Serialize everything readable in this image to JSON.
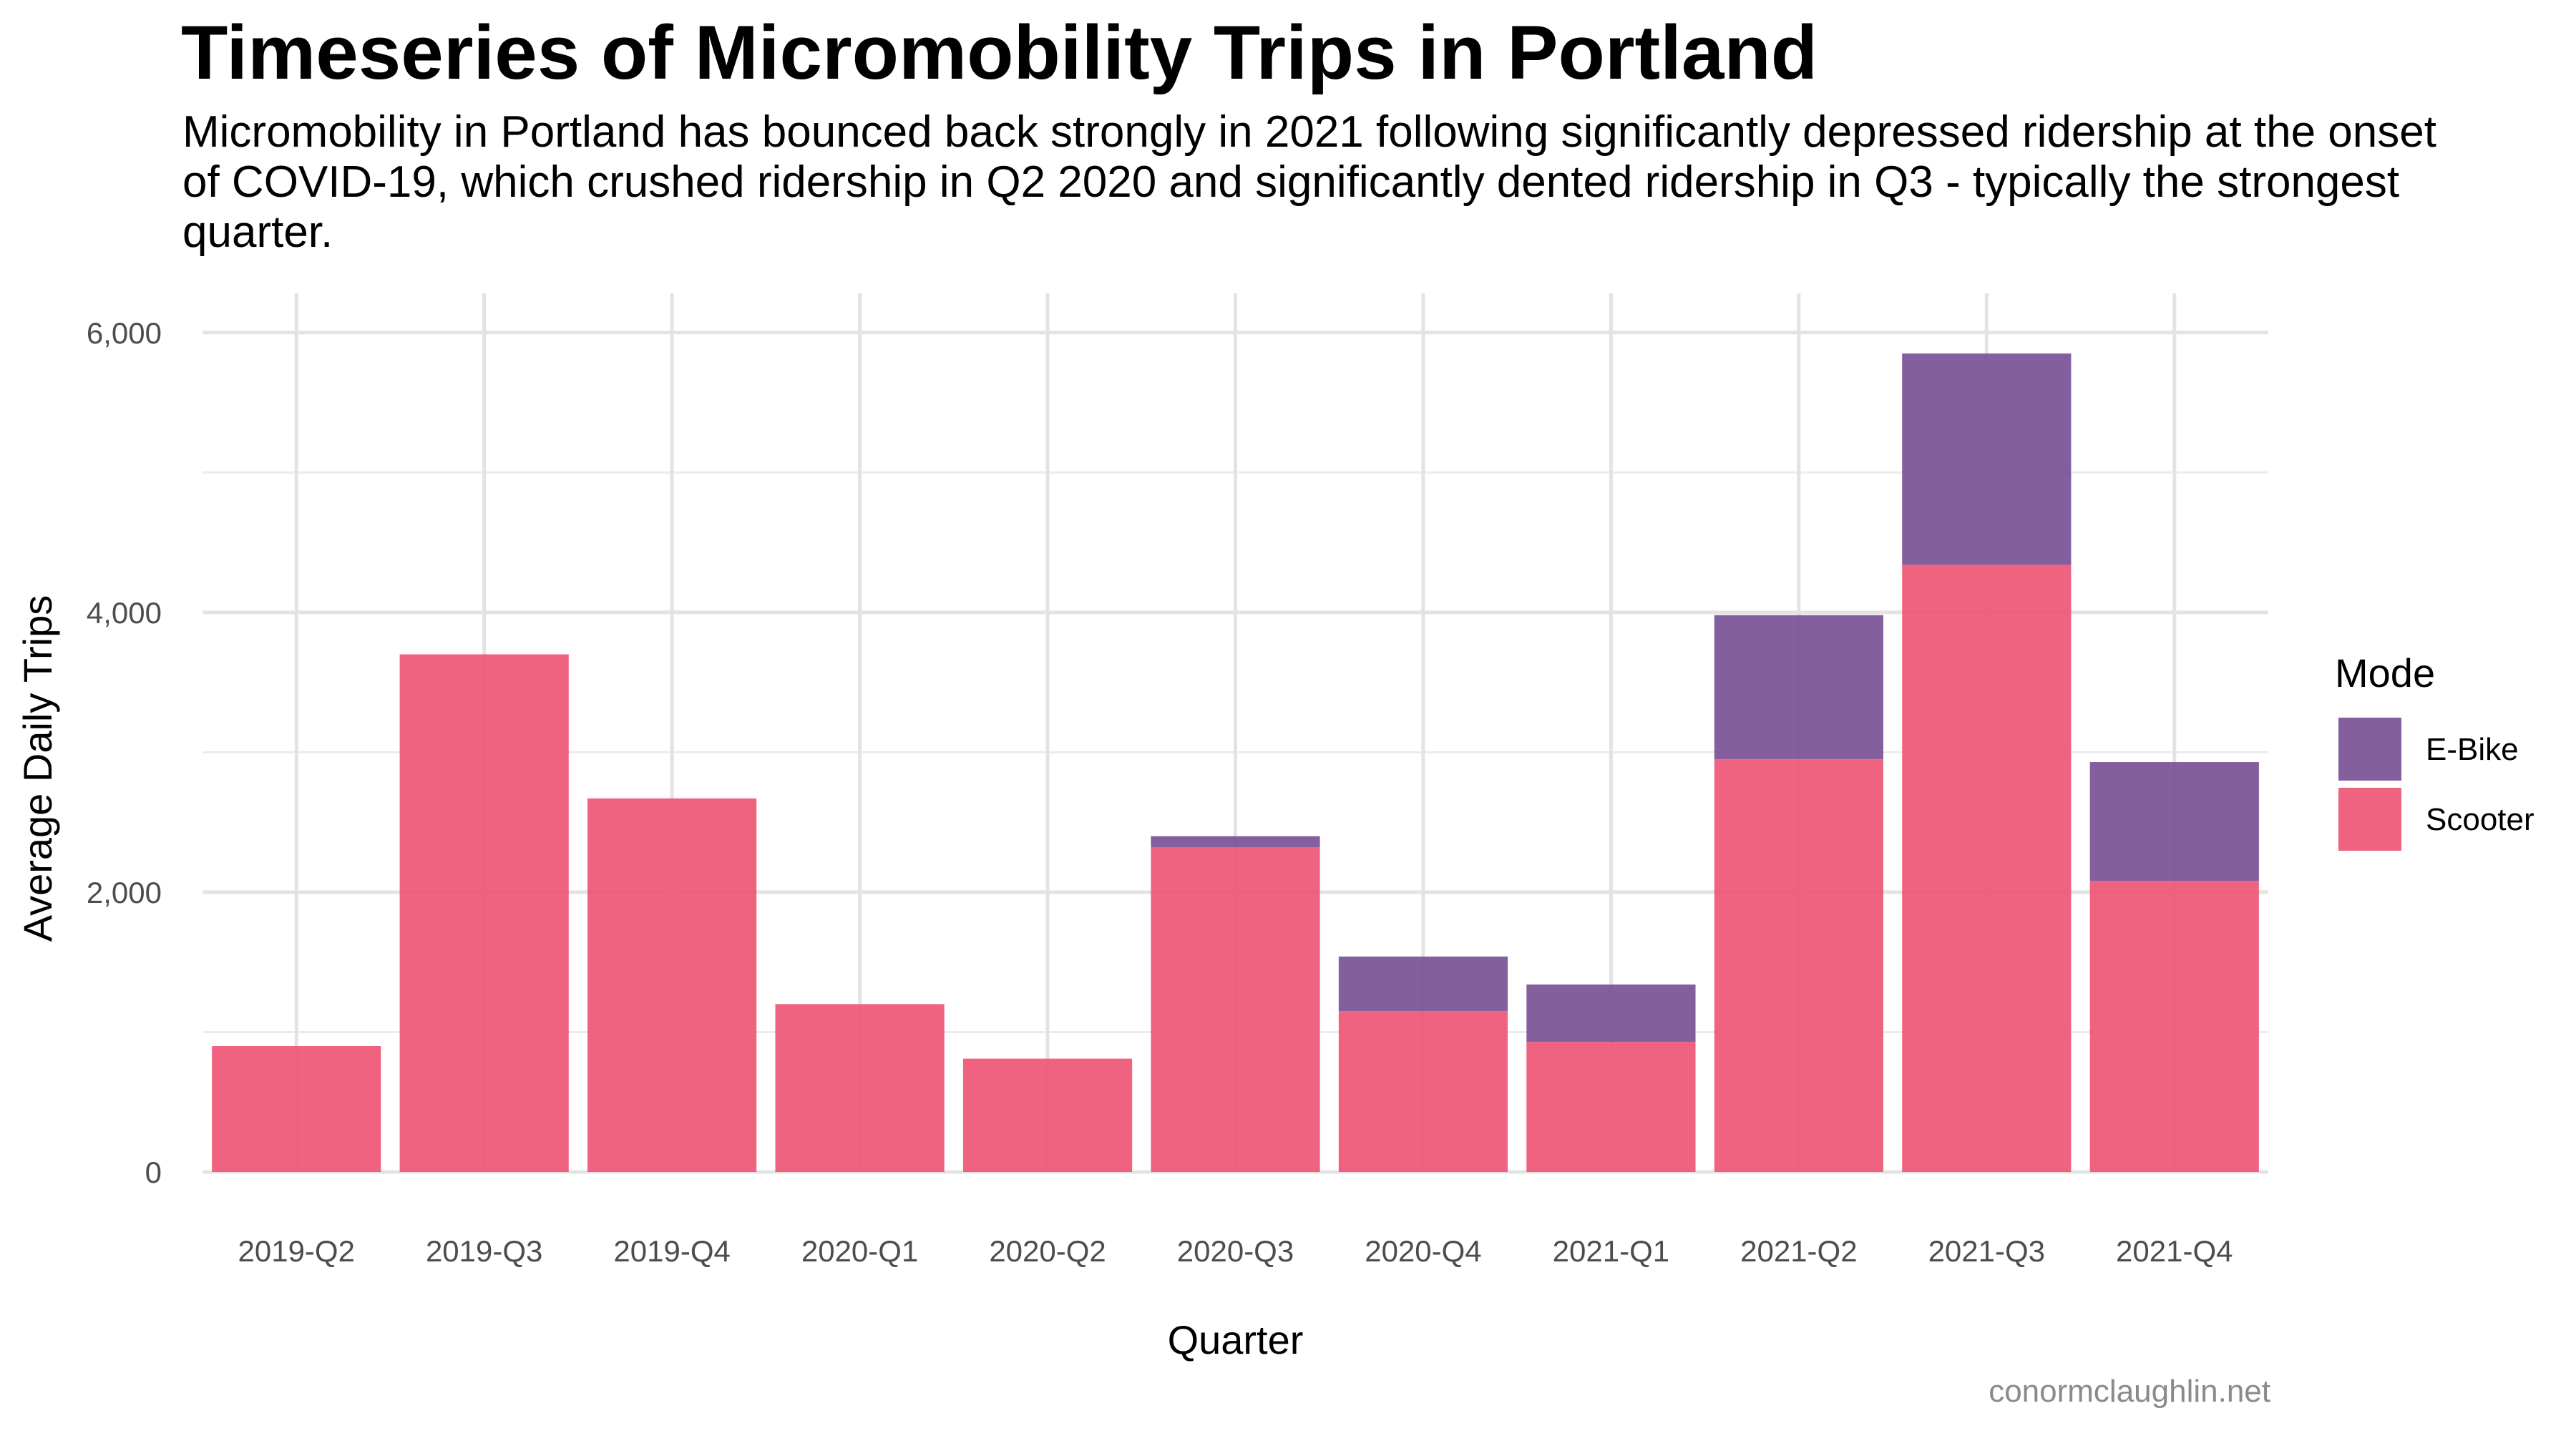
{
  "title": "Timeseries of Micromobility Trips in Portland",
  "subtitle": "Micromobility in Portland has bounced back strongly in 2021 following significantly depressed ridership at the onset of COVID-19, which crushed ridership in Q2 2020 and significantly dented ridership in Q3 - typically the strongest quarter.",
  "caption": "conormclaughlin.net",
  "chart_data": {
    "type": "bar",
    "stacked": true,
    "categories": [
      "2019-Q2",
      "2019-Q3",
      "2019-Q4",
      "2020-Q1",
      "2020-Q2",
      "2020-Q3",
      "2020-Q4",
      "2021-Q1",
      "2021-Q2",
      "2021-Q3",
      "2021-Q4"
    ],
    "series": [
      {
        "name": "Scooter",
        "color": "#ef5675",
        "values": [
          900,
          3700,
          2670,
          1200,
          810,
          2320,
          1150,
          930,
          2950,
          4340,
          2080
        ]
      },
      {
        "name": "E-Bike",
        "color": "#7a5195",
        "values": [
          0,
          0,
          0,
          0,
          0,
          80,
          390,
          410,
          1030,
          1510,
          850
        ]
      }
    ],
    "xlabel": "Quarter",
    "ylabel": "Average Daily Trips",
    "ylim": [
      0,
      6000
    ],
    "yticks": [
      0,
      2000,
      4000,
      6000
    ],
    "ytick_labels": [
      "0",
      "2,000",
      "4,000",
      "6,000"
    ],
    "grid": true,
    "legend": {
      "title": "Mode",
      "position": "right",
      "entries": [
        "E-Bike",
        "Scooter"
      ]
    }
  }
}
